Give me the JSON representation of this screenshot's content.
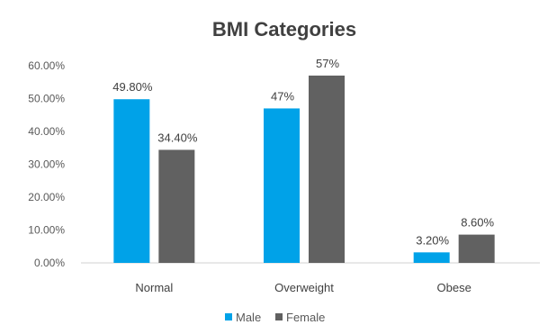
{
  "chart_data": {
    "type": "bar",
    "title": "BMI Categories",
    "categories": [
      "Normal",
      "Overweight",
      "Obese"
    ],
    "series": [
      {
        "name": "Male",
        "values": [
          49.8,
          47,
          3.2
        ],
        "labels": [
          "49.80%",
          "47%",
          "3.20%"
        ],
        "color": "#00a2e8"
      },
      {
        "name": "Female",
        "values": [
          34.4,
          57,
          8.6
        ],
        "labels": [
          "34.40%",
          "57%",
          "8.60%"
        ],
        "color": "#616161"
      }
    ],
    "ylim": [
      0,
      60
    ],
    "yticks": [
      0,
      10,
      20,
      30,
      40,
      50,
      60
    ],
    "ytick_labels": [
      "0.00%",
      "10.00%",
      "20.00%",
      "30.00%",
      "40.00%",
      "50.00%",
      "60.00%"
    ],
    "grid": false,
    "legend_position": "bottom"
  }
}
